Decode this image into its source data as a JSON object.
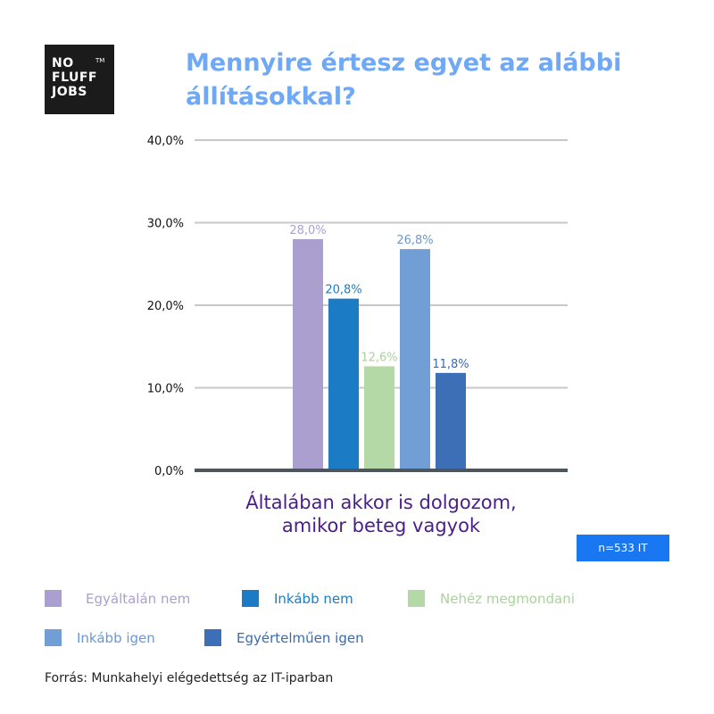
{
  "logo": {
    "line1": "NO",
    "line2": "FLUFF",
    "line3": "JOBS",
    "tm": "TM"
  },
  "title": "Mennyire értesz egyet az alábbi állításokkal?",
  "chart_data": {
    "type": "bar",
    "categories": [
      "Általában akkor is dolgozom, amikor beteg vagyok"
    ],
    "category_line1": "Általában akkor is dolgozom,",
    "category_line2": "amikor beteg vagyok",
    "series": [
      {
        "name": "Egyáltalán nem",
        "value": 28.0,
        "label": "28,0%",
        "color": "#ab9fd0",
        "label_color": "#ab9fd0"
      },
      {
        "name": "Inkább nem",
        "value": 20.8,
        "label": "20,8%",
        "color": "#1b7cc5",
        "label_color": "#1b7cc5"
      },
      {
        "name": "Nehéz megmondani",
        "value": 12.6,
        "label": "12,6%",
        "color": "#b5d8a7",
        "label_color": "#a9d39a"
      },
      {
        "name": "Inkább igen",
        "value": 26.8,
        "label": "26,8%",
        "color": "#729ed6",
        "label_color": "#6a97d2"
      },
      {
        "name": "Egyértelműen igen",
        "value": 11.8,
        "label": "11,8%",
        "color": "#3c6fb5",
        "label_color": "#3a6ab0"
      }
    ],
    "y_ticks": [
      {
        "value": 0,
        "label": "0,0%"
      },
      {
        "value": 10,
        "label": "10,0%"
      },
      {
        "value": 20,
        "label": "20,0%"
      },
      {
        "value": 30,
        "label": "30,0%"
      },
      {
        "value": 40,
        "label": "40,0%"
      }
    ],
    "ylim": [
      0,
      40
    ],
    "grid": true,
    "legend_position": "bottom",
    "sample_note": "n=533 IT"
  },
  "legend_rows": [
    [
      "Egyáltalán nem",
      "Inkább nem",
      "Nehéz megmondani"
    ],
    [
      "Inkább igen",
      "Egyértelműen igen"
    ]
  ],
  "source": "Forrás: Munkahelyi elégedettség az IT-iparban"
}
